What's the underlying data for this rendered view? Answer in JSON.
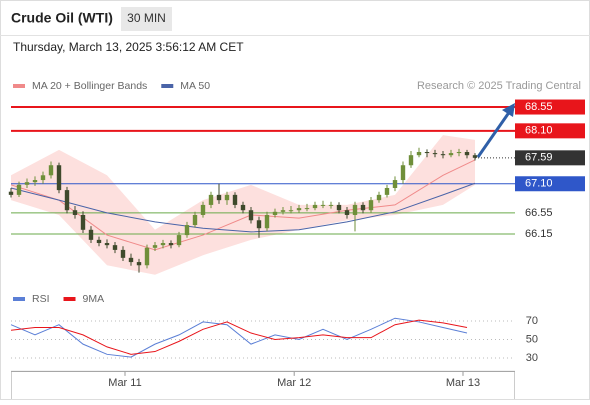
{
  "header": {
    "title": "Crude Oil (WTI)",
    "timeframe": "30 MIN",
    "datetime": "Thursday, March 13, 2025 3:56:12 AM CET"
  },
  "source": "Research © 2025 Trading Central",
  "chart_data": [
    {
      "type": "candlestick",
      "legend": "top-left",
      "xlim": [
        0,
        63
      ],
      "ylim": [
        65.2,
        68.8
      ],
      "up_color": "#6f8f3a",
      "down_color": "#3f4a2c",
      "candles": [
        [
          66.95,
          67.02,
          66.84,
          66.89
        ],
        [
          66.89,
          67.14,
          66.85,
          67.08
        ],
        [
          67.08,
          67.2,
          67.02,
          67.13
        ],
        [
          67.13,
          67.24,
          67.06,
          67.17
        ],
        [
          67.17,
          67.33,
          67.1,
          67.26
        ],
        [
          67.26,
          67.52,
          67.2,
          67.45
        ],
        [
          67.45,
          67.5,
          66.92,
          66.98
        ],
        [
          66.98,
          67.04,
          66.54,
          66.6
        ],
        [
          66.6,
          66.68,
          66.44,
          66.51
        ],
        [
          66.51,
          66.58,
          66.17,
          66.23
        ],
        [
          66.23,
          66.3,
          65.98,
          66.04
        ],
        [
          66.04,
          66.1,
          65.92,
          65.98
        ],
        [
          65.98,
          66.05,
          65.88,
          65.94
        ],
        [
          65.94,
          66.0,
          65.79,
          65.85
        ],
        [
          65.85,
          65.92,
          65.64,
          65.7
        ],
        [
          65.7,
          65.78,
          65.55,
          65.62
        ],
        [
          65.62,
          65.68,
          65.42,
          65.56
        ],
        [
          65.56,
          65.95,
          65.5,
          65.89
        ],
        [
          65.89,
          66.0,
          65.83,
          65.94
        ],
        [
          65.94,
          66.04,
          65.88,
          65.98
        ],
        [
          65.98,
          66.03,
          65.88,
          65.94
        ],
        [
          65.94,
          66.19,
          65.9,
          66.13
        ],
        [
          66.13,
          66.38,
          66.08,
          66.32
        ],
        [
          66.32,
          66.57,
          66.27,
          66.51
        ],
        [
          66.51,
          66.76,
          66.46,
          66.7
        ],
        [
          66.7,
          66.95,
          66.64,
          66.89
        ],
        [
          66.89,
          67.1,
          66.72,
          66.79
        ],
        [
          66.79,
          66.95,
          66.7,
          66.89
        ],
        [
          66.89,
          66.94,
          66.64,
          66.7
        ],
        [
          66.7,
          66.76,
          66.54,
          66.6
        ],
        [
          66.6,
          66.66,
          66.35,
          66.41
        ],
        [
          66.41,
          66.48,
          66.08,
          66.26
        ],
        [
          66.26,
          66.57,
          66.2,
          66.51
        ],
        [
          66.51,
          66.63,
          66.46,
          66.57
        ],
        [
          66.57,
          66.66,
          66.52,
          66.6
        ],
        [
          66.6,
          66.68,
          66.54,
          66.6
        ],
        [
          66.6,
          66.7,
          66.55,
          66.64
        ],
        [
          66.64,
          66.72,
          66.58,
          66.64
        ],
        [
          66.64,
          66.76,
          66.6,
          66.7
        ],
        [
          66.7,
          66.78,
          66.64,
          66.7
        ],
        [
          66.7,
          66.76,
          66.63,
          66.7
        ],
        [
          66.7,
          66.75,
          66.54,
          66.6
        ],
        [
          66.6,
          66.66,
          66.44,
          66.51
        ],
        [
          66.51,
          66.76,
          66.2,
          66.7
        ],
        [
          66.7,
          66.75,
          66.54,
          66.6
        ],
        [
          66.6,
          66.85,
          66.55,
          66.79
        ],
        [
          66.79,
          66.95,
          66.74,
          66.89
        ],
        [
          66.89,
          67.08,
          66.84,
          67.02
        ],
        [
          67.02,
          67.24,
          66.96,
          67.17
        ],
        [
          67.17,
          67.52,
          67.1,
          67.45
        ],
        [
          67.45,
          67.72,
          67.4,
          67.64
        ],
        [
          67.64,
          67.78,
          67.6,
          67.7
        ],
        [
          67.7,
          67.75,
          67.6,
          67.68
        ],
        [
          67.68,
          67.74,
          67.6,
          67.66
        ],
        [
          67.66,
          67.72,
          67.58,
          67.64
        ],
        [
          67.64,
          67.74,
          67.6,
          67.68
        ],
        [
          67.68,
          67.76,
          67.62,
          67.7
        ],
        [
          67.7,
          67.74,
          67.58,
          67.64
        ],
        [
          67.64,
          67.68,
          67.54,
          67.59
        ]
      ],
      "ma_x": [
        0,
        6,
        12,
        18,
        24,
        30,
        36,
        42,
        48,
        54,
        58
      ],
      "series": [
        {
          "name": "MA 20 + Bollinger Bands",
          "color": "#f08a8a",
          "band_color": "#fde0de",
          "values": [
            67.08,
            66.79,
            66.13,
            65.85,
            66.13,
            66.51,
            66.45,
            66.6,
            66.7,
            67.26,
            67.55
          ],
          "upper": [
            67.26,
            67.74,
            67.26,
            66.23,
            66.79,
            67.08,
            66.7,
            66.7,
            66.89,
            68.02,
            67.93
          ],
          "lower": [
            66.79,
            66.51,
            65.56,
            65.38,
            65.75,
            66.04,
            66.23,
            66.41,
            66.51,
            66.7,
            67.08
          ]
        },
        {
          "name": "MA 50",
          "color": "#4a64a8",
          "values": [
            67.02,
            66.79,
            66.55,
            66.38,
            66.26,
            66.19,
            66.23,
            66.38,
            66.57,
            66.89,
            67.11
          ]
        }
      ],
      "levels": {
        "values": [
          68.55,
          68.1,
          67.1,
          66.55,
          66.15
        ],
        "value_labels": [
          "68.55",
          "68.10",
          "67.10",
          "66.55",
          "66.15"
        ],
        "colors": [
          "#e8151b",
          "#e8151b",
          "#2f57c9",
          "#6aaa4a",
          "#6aaa4a"
        ],
        "label_box": [
          true,
          true,
          true,
          false,
          false
        ]
      },
      "last_price": 67.59
    },
    {
      "type": "line",
      "legend": "top-left",
      "xlim": [
        0,
        63
      ],
      "ylim": [
        15,
        80
      ],
      "yticks": [
        30,
        50,
        70
      ],
      "xticks": [
        {
          "value": 14.25,
          "label": "Mar 11"
        },
        {
          "value": 35.4,
          "label": "Mar 12"
        },
        {
          "value": 56.5,
          "label": "Mar 13"
        }
      ],
      "x": [
        0,
        3,
        6,
        9,
        12,
        15,
        18,
        21,
        24,
        27,
        30,
        33,
        36,
        39,
        42,
        45,
        48,
        51,
        54,
        57
      ],
      "series": [
        {
          "name": "RSI",
          "color": "#5b7fd6",
          "values": [
            66,
            55,
            66,
            45,
            34,
            31,
            45,
            55,
            69,
            66,
            45,
            55,
            50,
            61,
            50,
            61,
            73,
            69,
            63,
            57
          ]
        },
        {
          "name": "9MA",
          "color": "#e8151b",
          "values": [
            60,
            63,
            63,
            55,
            42,
            34,
            37,
            48,
            61,
            69,
            57,
            50,
            52,
            55,
            52,
            52,
            66,
            71,
            68,
            63
          ]
        }
      ]
    }
  ]
}
